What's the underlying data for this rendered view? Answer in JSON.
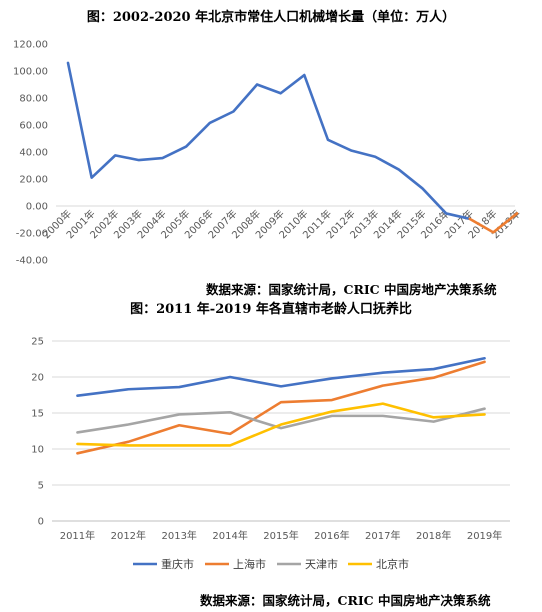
{
  "chart_data": [
    {
      "type": "line",
      "title": "图：2002-2020 年北京市常住人口机械增长量（单位：万人）",
      "source": "数据来源：国家统计局，CRIC 中国房地产决策系统",
      "categories": [
        "2000年",
        "2001年",
        "2002年",
        "2003年",
        "2004年",
        "2005年",
        "2006年",
        "2007年",
        "2008年",
        "2009年",
        "2010年",
        "2011年",
        "2012年",
        "2013年",
        "2014年",
        "2015年",
        "2016年",
        "2017年",
        "2018年",
        "2019年"
      ],
      "series": [
        {
          "color": "#4472c4",
          "values": [
            106,
            21,
            37.5,
            34,
            35.5,
            44,
            61.5,
            70,
            90,
            83.5,
            97,
            49,
            41,
            36.5,
            27,
            13,
            -5.5,
            -9.5,
            -19.5,
            -5.5
          ],
          "segments": [
            {
              "from": 0,
              "to": 17,
              "color": "#4472c4"
            },
            {
              "from": 17,
              "to": 19,
              "color": "#ed7d31"
            }
          ]
        }
      ],
      "ylim": [
        -40,
        120
      ],
      "yticks": [
        "-40.00",
        "-20.00",
        "0.00",
        "20.00",
        "40.00",
        "60.00",
        "80.00",
        "100.00",
        "120.00"
      ],
      "grid": false
    },
    {
      "type": "line",
      "title": "图：2011 年-2019 年各直辖市老龄人口抚养比",
      "source": "数据来源：国家统计局，CRIC 中国房地产决策系统",
      "categories": [
        "2011年",
        "2012年",
        "2013年",
        "2014年",
        "2015年",
        "2016年",
        "2017年",
        "2018年",
        "2019年"
      ],
      "series": [
        {
          "name": "重庆市",
          "color": "#4472c4",
          "values": [
            17.4,
            18.3,
            18.6,
            20.0,
            18.7,
            19.8,
            20.6,
            21.1,
            22.6
          ]
        },
        {
          "name": "上海市",
          "color": "#ed7d31",
          "values": [
            9.4,
            11.0,
            13.3,
            12.1,
            16.5,
            16.8,
            18.8,
            19.9,
            22.1
          ]
        },
        {
          "name": "天津市",
          "color": "#a5a5a5",
          "values": [
            12.3,
            13.4,
            14.8,
            15.1,
            12.9,
            14.6,
            14.6,
            13.8,
            15.6
          ]
        },
        {
          "name": "北京市",
          "color": "#ffc000",
          "values": [
            10.7,
            10.5,
            10.5,
            10.5,
            13.4,
            15.2,
            16.3,
            14.4,
            14.8
          ]
        }
      ],
      "ylim": [
        0,
        25
      ],
      "yticks": [
        "0",
        "5",
        "10",
        "15",
        "20",
        "25"
      ],
      "grid": true,
      "legend": "bottom"
    }
  ]
}
